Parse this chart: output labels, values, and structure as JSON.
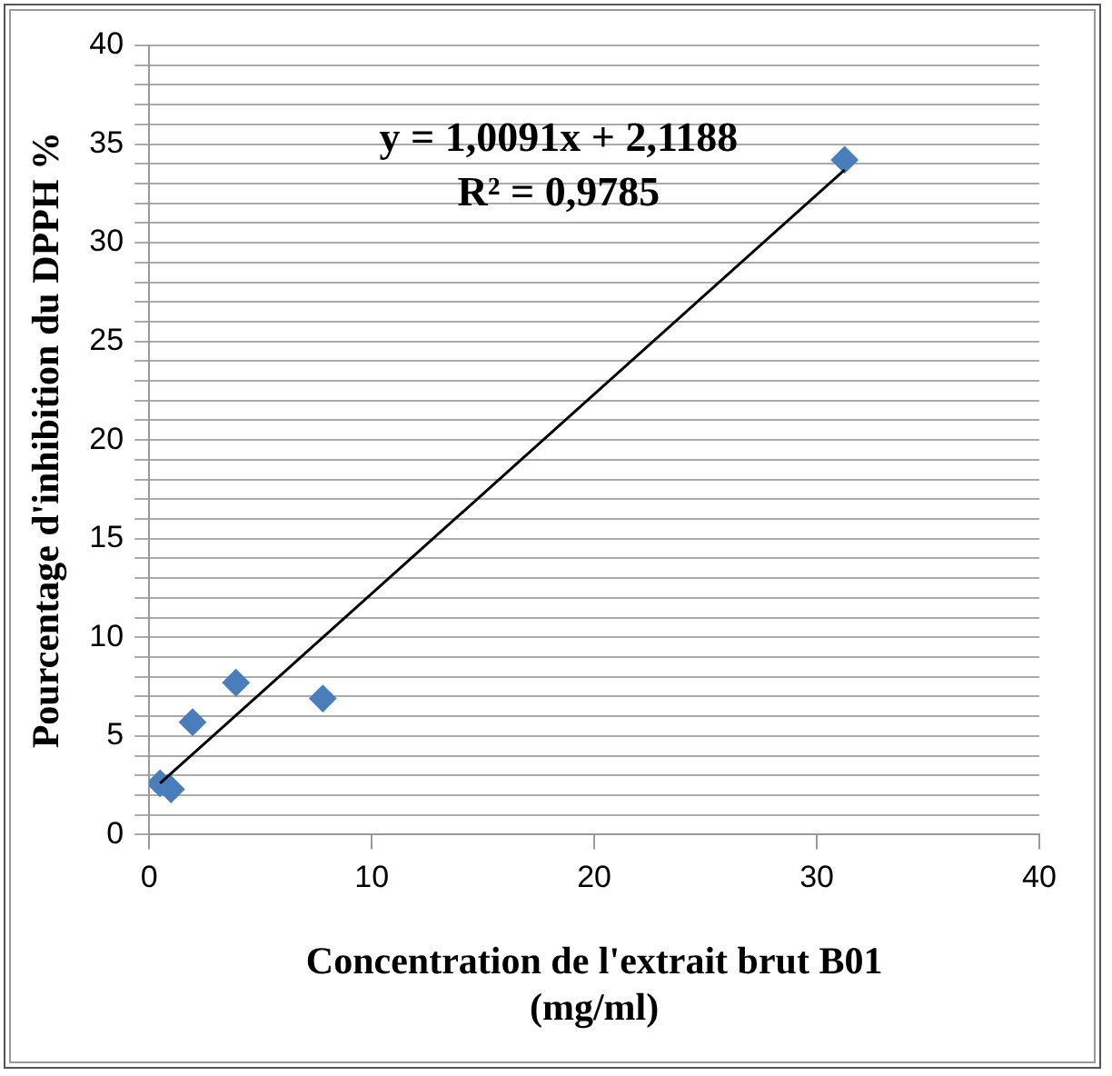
{
  "chart_data": {
    "type": "scatter",
    "xlabel": "Concentration de l'extrait brut B01\n(mg/ml)",
    "ylabel": "Pourcentage d'inhibition du DPPH %",
    "x": [
      0.49,
      0.98,
      1.95,
      3.9,
      7.8,
      31.25
    ],
    "series": [
      {
        "color": "#4a7ebb",
        "values": [
          2.6,
          2.3,
          5.7,
          7.7,
          6.9,
          34.2
        ],
        "marker": "diamond"
      },
      {
        "type": "line",
        "color": "#000000",
        "x": [
          0.49,
          31.25
        ],
        "values": [
          2.6,
          33.7
        ],
        "marker": "none"
      }
    ],
    "xlim": [
      0,
      40
    ],
    "xticks": [
      0,
      10,
      20,
      30,
      40
    ],
    "ylim": [
      0,
      40
    ],
    "yticks": [
      0,
      {
        "value": 1,
        "label": null
      },
      {
        "value": 2,
        "label": null
      },
      {
        "value": 3,
        "label": null
      },
      {
        "value": 4,
        "label": null
      },
      5,
      {
        "value": 6,
        "label": null
      },
      {
        "value": 7,
        "label": null
      },
      {
        "value": 8,
        "label": null
      },
      {
        "value": 9,
        "label": null
      },
      10,
      {
        "value": 11,
        "label": null
      },
      {
        "value": 12,
        "label": null
      },
      {
        "value": 13,
        "label": null
      },
      {
        "value": 14,
        "label": null
      },
      15,
      {
        "value": 16,
        "label": null
      },
      {
        "value": 17,
        "label": null
      },
      {
        "value": 18,
        "label": null
      },
      {
        "value": 19,
        "label": null
      },
      20,
      {
        "value": 21,
        "label": null
      },
      {
        "value": 22,
        "label": null
      },
      {
        "value": 23,
        "label": null
      },
      {
        "value": 24,
        "label": null
      },
      25,
      {
        "value": 26,
        "label": null
      },
      {
        "value": 27,
        "label": null
      },
      {
        "value": 28,
        "label": null
      },
      {
        "value": 29,
        "label": null
      },
      30,
      {
        "value": 31,
        "label": null
      },
      {
        "value": 32,
        "label": null
      },
      {
        "value": 33,
        "label": null
      },
      {
        "value": 34,
        "label": null
      },
      35,
      {
        "value": 36,
        "label": null
      },
      {
        "value": 37,
        "label": null
      },
      {
        "value": 38,
        "label": null
      },
      {
        "value": 39,
        "label": null
      },
      40
    ],
    "grid": "y",
    "legend": false,
    "annotations": [
      "y = 1,0091x + 2,1188",
      "R² = 0,9785"
    ]
  }
}
